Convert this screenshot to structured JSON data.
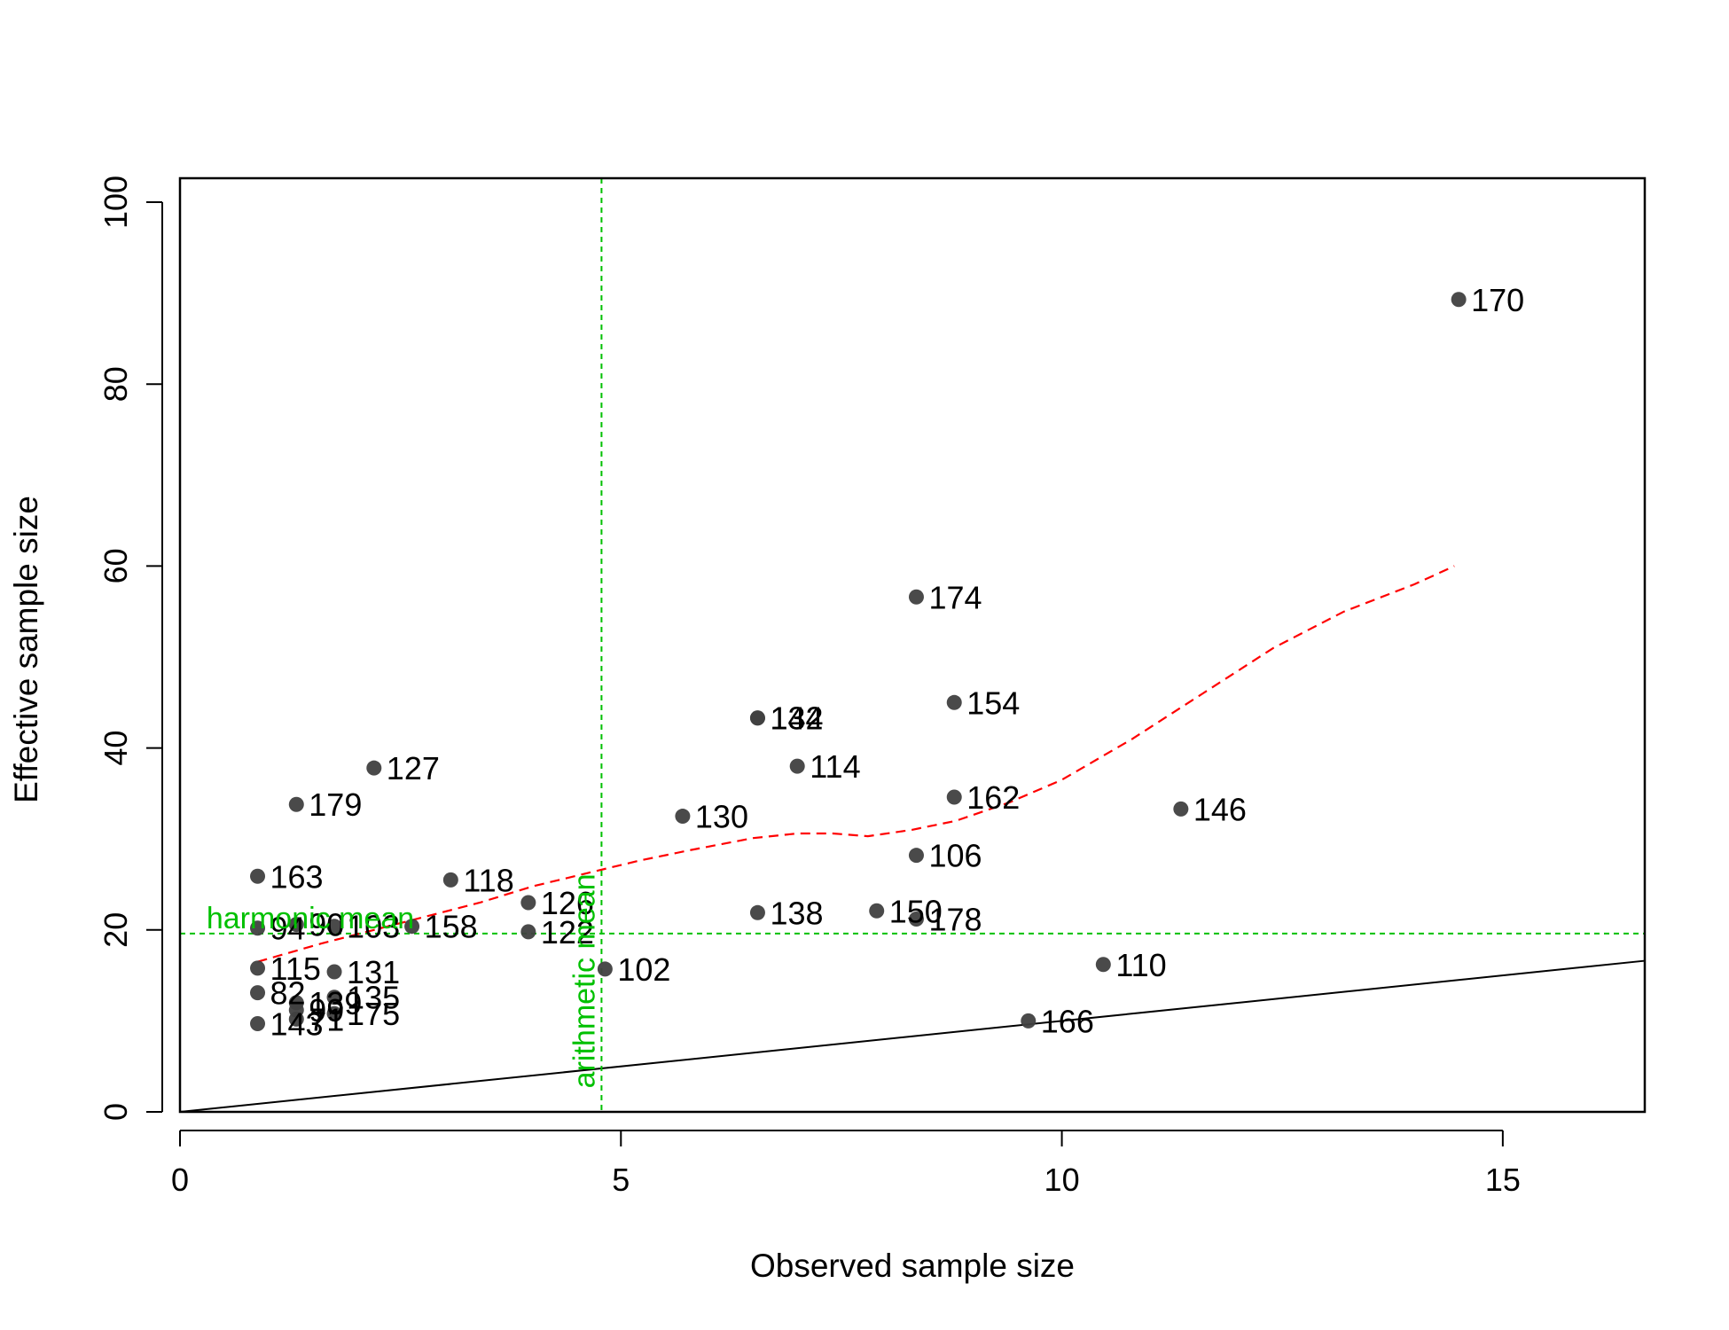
{
  "chart_data": {
    "type": "scatter",
    "xlabel": "Observed sample size",
    "ylabel": "Effective sample size",
    "xlim": [
      0,
      16.6
    ],
    "ylim": [
      0,
      100
    ],
    "x_ticks": [
      0,
      5,
      10,
      15
    ],
    "y_ticks": [
      0,
      20,
      40,
      60,
      80,
      100
    ],
    "grid": false,
    "legend": "none",
    "colors": {
      "points": "#404040",
      "reference_line": "#000000",
      "smooth_curve": "#ff0000",
      "mean_lines": "#00c000"
    },
    "points": [
      {
        "label": "170",
        "x": 14.5,
        "y": 89.3
      },
      {
        "label": "174",
        "x": 8.35,
        "y": 56.6
      },
      {
        "label": "154",
        "x": 8.78,
        "y": 45.0
      },
      {
        "label": "134",
        "x": 6.55,
        "y": 43.3
      },
      {
        "label": "142",
        "x": 6.55,
        "y": 43.3
      },
      {
        "label": "127",
        "x": 2.2,
        "y": 37.8
      },
      {
        "label": "114",
        "x": 7.0,
        "y": 38.0
      },
      {
        "label": "162",
        "x": 8.78,
        "y": 34.6
      },
      {
        "label": "179",
        "x": 1.32,
        "y": 33.8
      },
      {
        "label": "146",
        "x": 11.35,
        "y": 33.3
      },
      {
        "label": "130",
        "x": 5.7,
        "y": 32.5
      },
      {
        "label": "106",
        "x": 8.35,
        "y": 28.2
      },
      {
        "label": "163",
        "x": 0.88,
        "y": 25.9
      },
      {
        "label": "118",
        "x": 3.07,
        "y": 25.5
      },
      {
        "label": "126",
        "x": 3.95,
        "y": 23.0
      },
      {
        "label": "138",
        "x": 6.55,
        "y": 21.9
      },
      {
        "label": "150",
        "x": 7.9,
        "y": 22.1
      },
      {
        "label": "178",
        "x": 8.35,
        "y": 21.2
      },
      {
        "label": "122",
        "x": 3.95,
        "y": 19.8
      },
      {
        "label": "94",
        "x": 0.88,
        "y": 20.2
      },
      {
        "label": "90",
        "x": 1.32,
        "y": 20.6
      },
      {
        "label": "103",
        "x": 1.75,
        "y": 20.4
      },
      {
        "label": "158",
        "x": 2.63,
        "y": 20.4
      },
      {
        "label": "102",
        "x": 4.82,
        "y": 15.7
      },
      {
        "label": "110",
        "x": 10.47,
        "y": 16.2
      },
      {
        "label": "115",
        "x": 0.88,
        "y": 15.8
      },
      {
        "label": "131",
        "x": 1.75,
        "y": 15.4
      },
      {
        "label": "82",
        "x": 0.88,
        "y": 13.1
      },
      {
        "label": "139",
        "x": 1.32,
        "y": 12.0
      },
      {
        "label": "135",
        "x": 1.75,
        "y": 12.6
      },
      {
        "label": "143",
        "x": 0.88,
        "y": 9.7
      },
      {
        "label": "71",
        "x": 1.32,
        "y": 10.2
      },
      {
        "label": "99",
        "x": 1.32,
        "y": 11.2
      },
      {
        "label": "175",
        "x": 1.75,
        "y": 10.8
      },
      {
        "label": "166",
        "x": 9.62,
        "y": 10.0
      }
    ],
    "identity_line": {
      "x": [
        0,
        16.6
      ],
      "y": [
        0,
        16.6
      ]
    },
    "smooth_curve": {
      "x": [
        0.88,
        1.6,
        2.2,
        2.8,
        3.4,
        4.0,
        4.6,
        5.2,
        5.8,
        6.5,
        7.0,
        7.4,
        7.8,
        8.3,
        8.8,
        9.4,
        10.0,
        10.8,
        11.6,
        12.4,
        13.2,
        14.0,
        14.45
      ],
      "y": [
        16.5,
        18.5,
        20.0,
        21.5,
        23.0,
        24.8,
        26.2,
        27.6,
        28.8,
        30.1,
        30.6,
        30.6,
        30.3,
        31.0,
        32.0,
        34.0,
        36.5,
        41.0,
        46.0,
        51.0,
        55.0,
        58.0,
        60.0
      ]
    },
    "harmonic_mean": {
      "label": "harmonic mean",
      "value": 19.6
    },
    "arithmetic_mean": {
      "label": "arithmetic mean",
      "value": 4.78
    }
  }
}
